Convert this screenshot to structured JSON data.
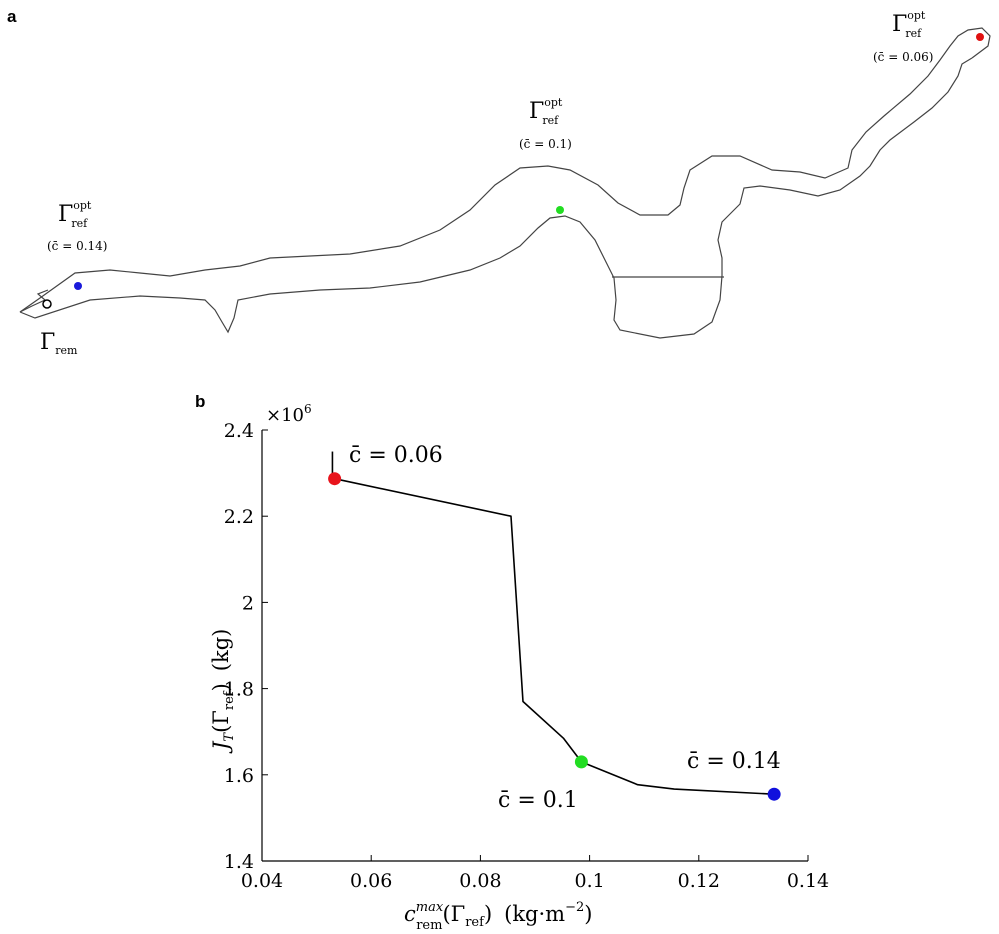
{
  "panel_a": {
    "letter": "a",
    "labels": [
      {
        "id": "left",
        "gamma": "Γ",
        "sub": "ref",
        "sup": "opt",
        "cbar": "(c̄ = 0.14)",
        "dot_color": "#1a1adb"
      },
      {
        "id": "middle",
        "gamma": "Γ",
        "sub": "ref",
        "sup": "opt",
        "cbar": "(c̄ = 0.1)",
        "dot_color": "#22dd22"
      },
      {
        "id": "right",
        "gamma": "Γ",
        "sub": "ref",
        "sup": "opt",
        "cbar": "(c̄ = 0.06)",
        "dot_color": "#e01010"
      }
    ],
    "removal_label": {
      "gamma": "Γ",
      "sub": "rem"
    }
  },
  "chart_data": {
    "type": "line",
    "panel_letter": "b",
    "x": [
      0.0533,
      0.0856,
      0.0878,
      0.0952,
      0.0985,
      0.1088,
      0.1155,
      0.1338
    ],
    "y": [
      2.287,
      2.2,
      1.77,
      1.685,
      1.63,
      1.577,
      1.567,
      1.555
    ],
    "stub": {
      "x": 0.0529,
      "y_from": 2.287,
      "y_to": 2.35
    },
    "highlight_points": [
      {
        "x": 0.0533,
        "y": 2.287,
        "color": "#e8141c",
        "label": "c̄ = 0.06"
      },
      {
        "x": 0.0985,
        "y": 1.63,
        "color": "#22dd22",
        "label": "c̄ = 0.1"
      },
      {
        "x": 0.1338,
        "y": 1.555,
        "color": "#1010dd",
        "label": "c̄ = 0.14"
      }
    ],
    "xlim": [
      0.04,
      0.14
    ],
    "ylim": [
      1.4,
      2.4
    ],
    "xticks": [
      0.04,
      0.06,
      0.08,
      0.1,
      0.12,
      0.14
    ],
    "xtick_labels": [
      "0.04",
      "0.06",
      "0.08",
      "0.1",
      "0.12",
      "0.14"
    ],
    "yticks": [
      1.4,
      1.6,
      1.8,
      2.0,
      2.2,
      2.4
    ],
    "ytick_labels": [
      "1.4",
      "1.6",
      "1.8",
      "2",
      "2.2",
      "2.4"
    ],
    "y_multiplier": {
      "base": "×10",
      "exp": "6"
    },
    "xlabel": {
      "main": "c",
      "sup": "max",
      "sub": "rem",
      "arg": "(Γ",
      "arg_sub": "ref",
      "arg_end": ")",
      "unit": "(kg·m",
      "unit_sup": "−2",
      "unit_end": ")"
    },
    "ylabel": {
      "main": "J",
      "sub": "T",
      "arg": "(Γ",
      "arg_sub": "ref",
      "arg_end": ")",
      "unit": "(kg)"
    },
    "grid": false,
    "line_color": "#000000"
  }
}
